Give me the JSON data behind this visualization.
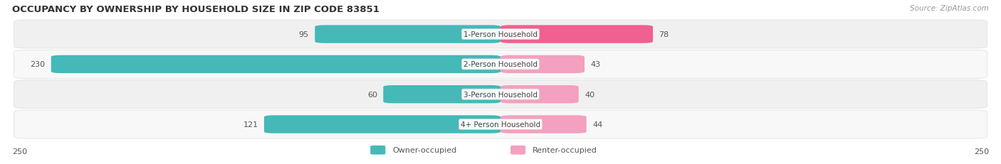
{
  "title": "OCCUPANCY BY OWNERSHIP BY HOUSEHOLD SIZE IN ZIP CODE 83851",
  "source": "Source: ZipAtlas.com",
  "categories": [
    "1-Person Household",
    "2-Person Household",
    "3-Person Household",
    "4+ Person Household"
  ],
  "owner_values": [
    95,
    230,
    60,
    121
  ],
  "renter_values": [
    78,
    43,
    40,
    44
  ],
  "owner_color": "#45B8B8",
  "renter_color_1": "#F06090",
  "renter_color_rest": "#F4A0C0",
  "axis_max": 250,
  "legend_owner": "Owner-occupied",
  "legend_renter": "Renter-occupied",
  "fig_bg_color": "#FFFFFF",
  "row_bg_odd": "#F0F0F0",
  "row_bg_even": "#F8F8F8",
  "title_color": "#333333",
  "source_color": "#999999",
  "value_color": "#555555",
  "label_color": "#444444",
  "title_fontsize": 9.5,
  "source_fontsize": 7.5,
  "label_fontsize": 7.5,
  "value_fontsize": 8.0
}
